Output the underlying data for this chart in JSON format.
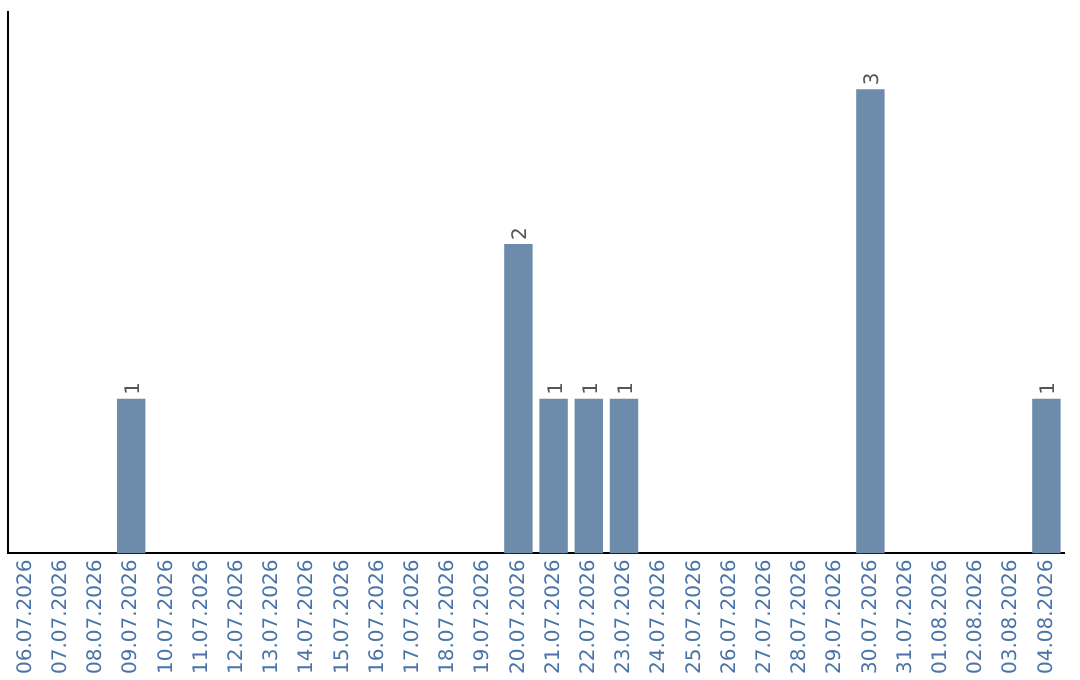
{
  "chart_data": {
    "type": "bar",
    "categories": [
      "06.07.2026",
      "07.07.2026",
      "08.07.2026",
      "09.07.2026",
      "10.07.2026",
      "11.07.2026",
      "12.07.2026",
      "13.07.2026",
      "14.07.2026",
      "15.07.2026",
      "16.07.2026",
      "17.07.2026",
      "18.07.2026",
      "19.07.2026",
      "20.07.2026",
      "21.07.2026",
      "22.07.2026",
      "23.07.2026",
      "24.07.2026",
      "25.07.2026",
      "26.07.2026",
      "27.07.2026",
      "28.07.2026",
      "29.07.2026",
      "30.07.2026",
      "31.07.2026",
      "01.08.2026",
      "02.08.2026",
      "03.08.2026",
      "04.08.2026"
    ],
    "values": [
      0,
      0,
      0,
      1,
      0,
      0,
      0,
      0,
      0,
      0,
      0,
      0,
      0,
      0,
      2,
      1,
      1,
      1,
      0,
      0,
      0,
      0,
      0,
      0,
      3,
      0,
      0,
      0,
      0,
      1
    ],
    "value_labels": [
      null,
      null,
      null,
      "1",
      null,
      null,
      null,
      null,
      null,
      null,
      null,
      null,
      null,
      null,
      "2",
      "1",
      "1",
      "1",
      null,
      null,
      null,
      null,
      null,
      null,
      "3",
      null,
      null,
      null,
      null,
      "1"
    ],
    "color": "#6d8cab",
    "grid": false,
    "legend": false,
    "tick_labels": "x"
  }
}
